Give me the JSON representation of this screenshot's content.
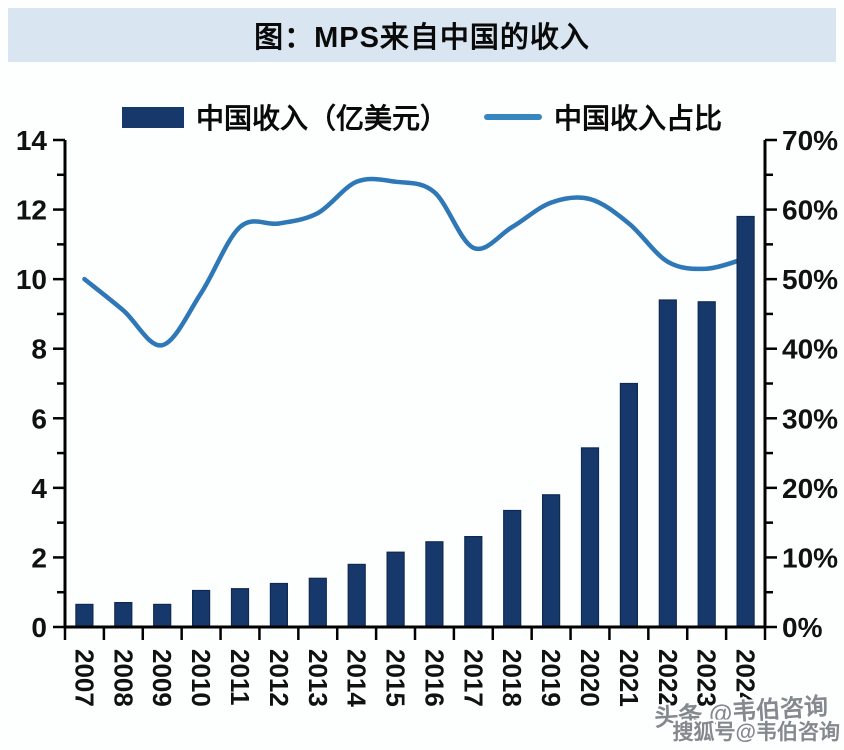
{
  "banner": {
    "title": "图：MPS来自中国的收入"
  },
  "legend": {
    "bar_label": "中国收入（亿美元）",
    "line_label": "中国收入占比"
  },
  "watermarks": {
    "line1": "头条 @韦伯咨询",
    "line2": "搜狐号@韦伯咨询"
  },
  "colors": {
    "banner_bg": "#d9e6f2",
    "bar_fill": "#16386b",
    "bar_edge": "#0f2a52",
    "line_stroke": "#2e78b8",
    "legend_line": "#3786c0",
    "axis": "#000000",
    "tick_text": "#111111"
  },
  "chart_data": {
    "type": "bar",
    "subtype": "combo-bar-line-dual-axis",
    "title": "图：MPS来自中国的收入",
    "categories": [
      "2007",
      "2008",
      "2009",
      "2010",
      "2011",
      "2012",
      "2013",
      "2014",
      "2015",
      "2016",
      "2017",
      "2018",
      "2019",
      "2020",
      "2021",
      "2022",
      "2023",
      "2024"
    ],
    "series": [
      {
        "name": "中国收入（亿美元）",
        "type": "bar",
        "axis": "left",
        "values": [
          0.65,
          0.7,
          0.65,
          1.05,
          1.1,
          1.25,
          1.4,
          1.8,
          2.15,
          2.45,
          2.6,
          3.35,
          3.8,
          5.15,
          7.0,
          9.4,
          9.35,
          11.8
        ]
      },
      {
        "name": "中国收入占比",
        "type": "line",
        "axis": "right",
        "unit": "%",
        "values": [
          50,
          45.5,
          40.5,
          48,
          57.5,
          58,
          59.5,
          64,
          64,
          62.5,
          54.5,
          57.5,
          61,
          61.5,
          58,
          52.5,
          51.5,
          53
        ]
      }
    ],
    "left_axis": {
      "min": 0,
      "max": 14,
      "step": 2,
      "minor_step": 1,
      "tick_labels": [
        "0",
        "2",
        "4",
        "6",
        "8",
        "10",
        "12",
        "14"
      ]
    },
    "right_axis": {
      "min": 0,
      "max": 70,
      "step": 10,
      "minor_step": 5,
      "tick_labels": [
        "0%",
        "10%",
        "20%",
        "30%",
        "40%",
        "50%",
        "60%",
        "70%"
      ]
    },
    "grid": false,
    "legend_position": "top",
    "x_tick_label_rotation": 90
  }
}
